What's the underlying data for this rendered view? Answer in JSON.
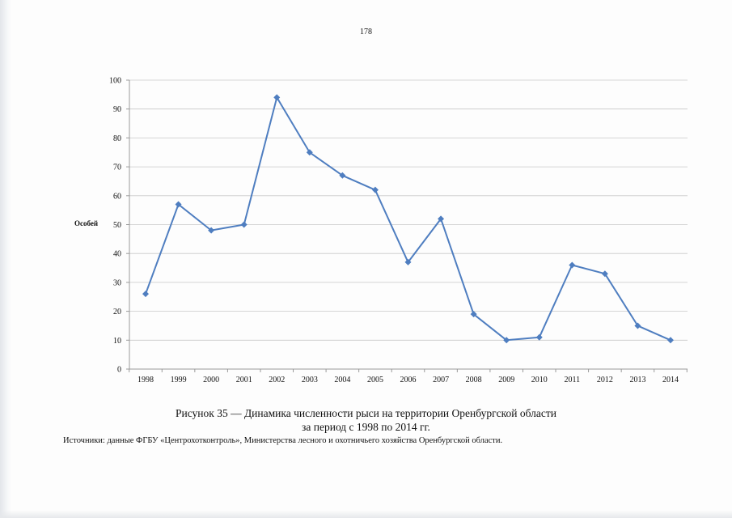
{
  "page_number": "178",
  "caption": {
    "line1": "Рисунок 35 — Динамика численности рыси на территории Оренбургской области",
    "line2": "за период с 1998 по 2014 гг."
  },
  "sources": "Источники: данные ФГБУ «Центрохотконтроль», Министерства лесного и охотничьего хозяйства Оренбургской области.",
  "colors": {
    "series": "#4f7ec0",
    "grid": "#c8c8c8",
    "axis": "#9a9a9a"
  },
  "chart_data": {
    "type": "line",
    "title": "",
    "xlabel": "",
    "ylabel": "Особей",
    "categories": [
      "1998",
      "1999",
      "2000",
      "2001",
      "2002",
      "2003",
      "2004",
      "2005",
      "2006",
      "2007",
      "2008",
      "2009",
      "2010",
      "2011",
      "2012",
      "2013",
      "2014"
    ],
    "series": [
      {
        "values": [
          26,
          57,
          48,
          50,
          94,
          75,
          67,
          62,
          37,
          52,
          19,
          10,
          11,
          36,
          33,
          15,
          10
        ],
        "marker": "diamond"
      }
    ],
    "ylim": [
      0,
      100
    ],
    "yticks": [
      0,
      10,
      20,
      30,
      40,
      50,
      60,
      70,
      80,
      90,
      100
    ],
    "grid": true,
    "legend": "none"
  }
}
